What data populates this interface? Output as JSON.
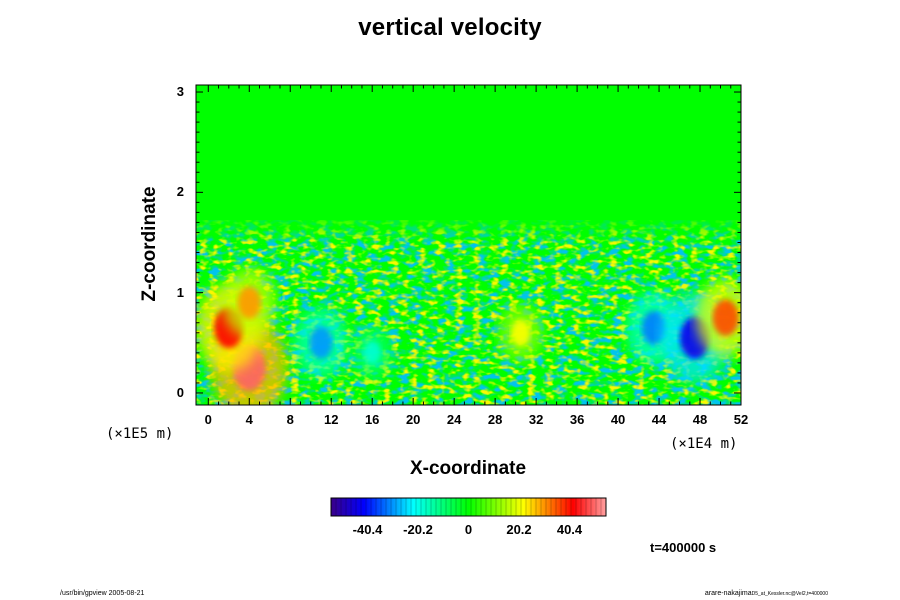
{
  "chart_data": {
    "type": "heatmap",
    "title": "vertical velocity",
    "xlabel": "X-coordinate",
    "ylabel": "Z-coordinate",
    "x_unit": "(×1E4 m)",
    "y_unit": "(×1E5 m)",
    "xlim": [
      -1.2,
      52
    ],
    "ylim": [
      -0.12,
      3.07
    ],
    "x_ticks": [
      0,
      4,
      8,
      12,
      16,
      20,
      24,
      28,
      32,
      36,
      40,
      44,
      48,
      52
    ],
    "y_ticks": [
      0,
      1,
      2,
      3
    ],
    "colorbar": {
      "range": [
        -55,
        55
      ],
      "tick_values": [
        -40.4,
        -20.2,
        0,
        20.2,
        40.4
      ],
      "tick_labels": [
        "-40.4",
        "-20.2",
        "0",
        "20.2",
        "40.4"
      ]
    },
    "field_features": [
      {
        "x": 4,
        "z": 0.25,
        "value": 50,
        "note": "strong updraft core, lower-left"
      },
      {
        "x": 2,
        "z": 0.65,
        "value": 42,
        "note": "updraft"
      },
      {
        "x": 4,
        "z": 0.9,
        "value": 30,
        "note": "updraft"
      },
      {
        "x": 11,
        "z": 0.5,
        "value": -30,
        "note": "downdraft"
      },
      {
        "x": 16,
        "z": 0.4,
        "value": -18,
        "note": "downdraft"
      },
      {
        "x": 30.5,
        "z": 0.6,
        "value": 22,
        "note": "updraft"
      },
      {
        "x": 43.5,
        "z": 0.65,
        "value": -32,
        "note": "downdraft"
      },
      {
        "x": 47.5,
        "z": 0.55,
        "value": -44,
        "note": "strong downdraft"
      },
      {
        "x": 50.5,
        "z": 0.75,
        "value": 36,
        "note": "updraft, right edge"
      }
    ],
    "turbulent_layer_top_z": 1.7
  },
  "annotation": {
    "time": "t=400000 s"
  },
  "footer": {
    "left": "/usr/bin/gpview 2005-08-21",
    "right_main": "arare-nakajima",
    "right_small": "D5_at_Kessler.nc@Vel2,t=400000"
  },
  "colors": {
    "background_field": "#00ff00",
    "axis": "#000000"
  }
}
